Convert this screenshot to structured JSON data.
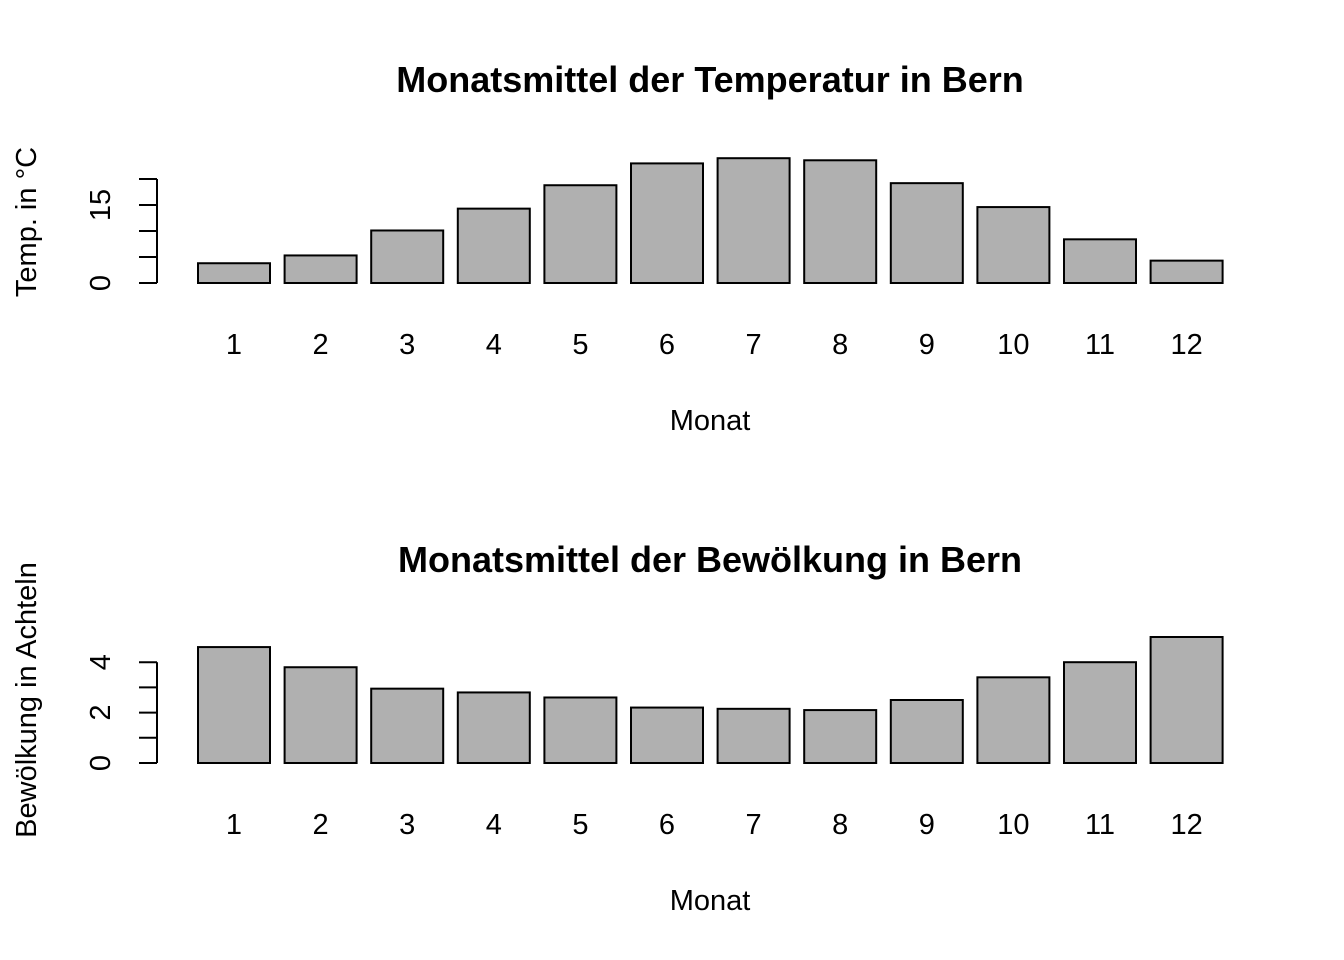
{
  "chart_data": [
    {
      "type": "bar",
      "title": "Monatsmittel der Temperatur in Bern",
      "xlabel": "Monat",
      "ylabel": "Temp. in °C",
      "categories": [
        "1",
        "2",
        "3",
        "4",
        "5",
        "6",
        "7",
        "8",
        "9",
        "10",
        "11",
        "12"
      ],
      "values": [
        3.8,
        5.3,
        10.1,
        14.3,
        18.8,
        23.0,
        24.0,
        23.6,
        19.2,
        14.6,
        8.4,
        4.3
      ],
      "ylim": [
        0,
        24
      ],
      "yticks": [
        0,
        5,
        10,
        15,
        20
      ],
      "ytick_labels": [
        "0",
        "",
        "",
        "15",
        ""
      ],
      "grid": false,
      "bar_color": "#b0b0b0"
    },
    {
      "type": "bar",
      "title": "Monatsmittel der Bewölkung in Bern",
      "xlabel": "Monat",
      "ylabel": "Bewölkung in Achteln",
      "categories": [
        "1",
        "2",
        "3",
        "4",
        "5",
        "6",
        "7",
        "8",
        "9",
        "10",
        "11",
        "12"
      ],
      "values": [
        4.6,
        3.8,
        2.95,
        2.8,
        2.6,
        2.2,
        2.15,
        2.1,
        2.5,
        3.4,
        4.0,
        5.0
      ],
      "ylim": [
        0,
        5
      ],
      "yticks": [
        0,
        1,
        2,
        3,
        4
      ],
      "ytick_labels": [
        "0",
        "",
        "2",
        "",
        "4"
      ],
      "grid": false,
      "bar_color": "#b0b0b0"
    }
  ]
}
